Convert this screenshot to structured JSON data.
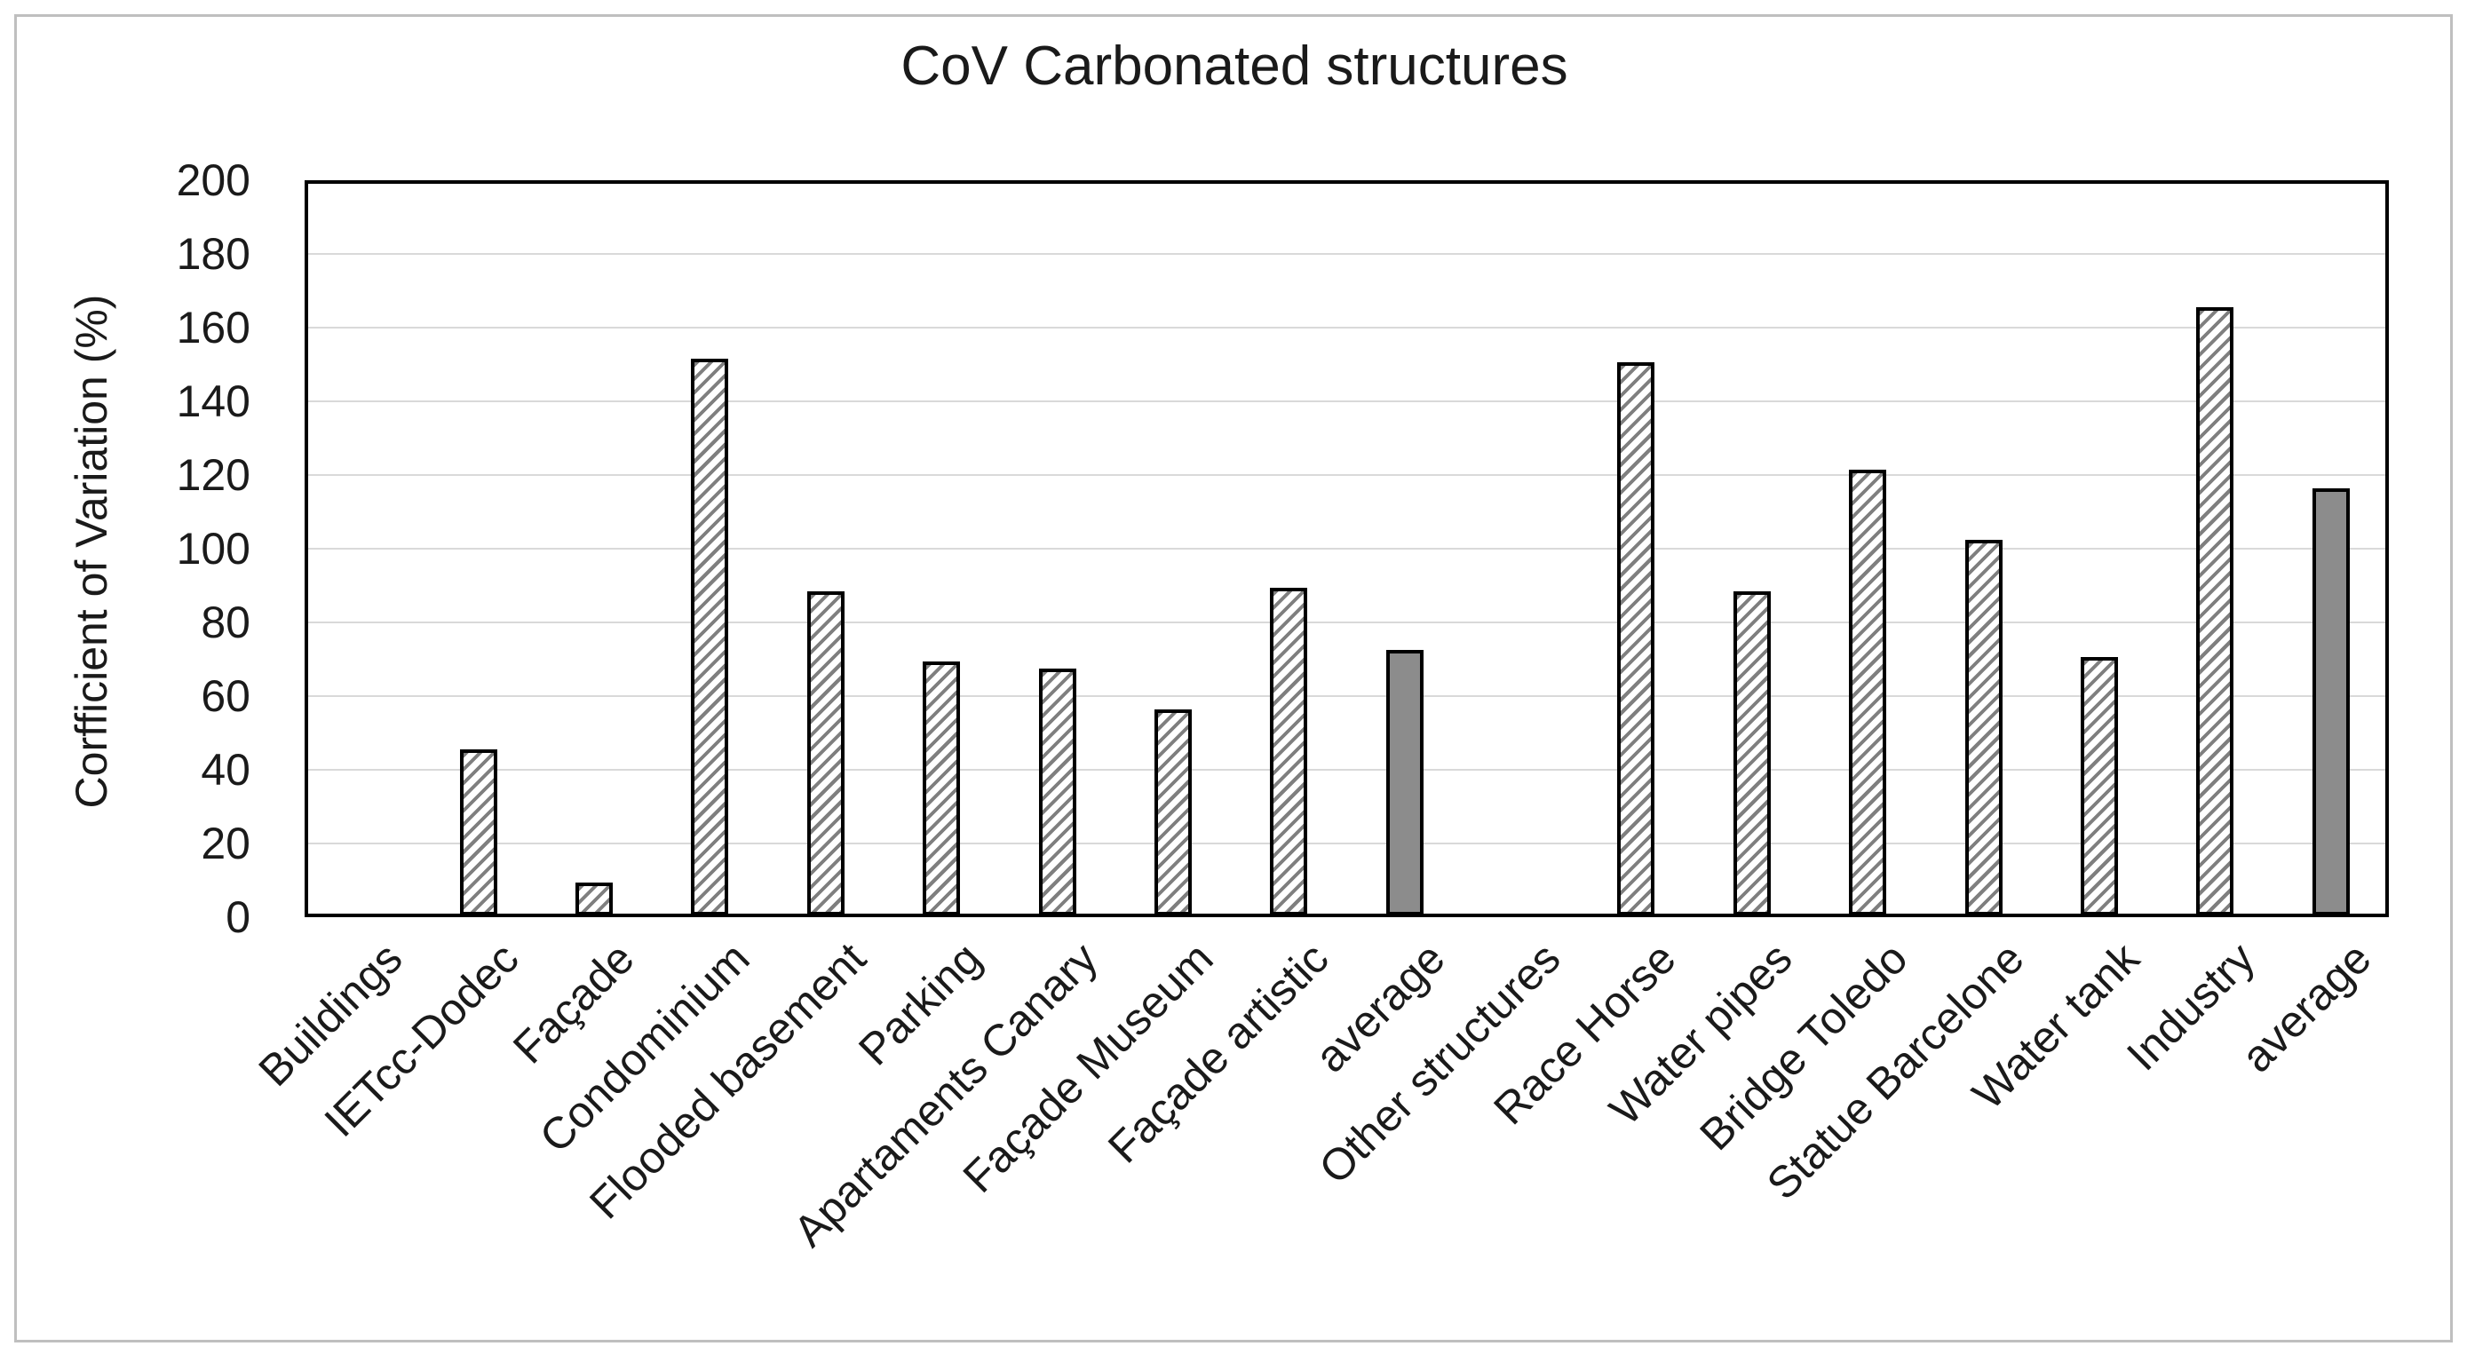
{
  "figure": {
    "background": "#ffffff",
    "border_color": "#bfbfbf"
  },
  "chart_data": {
    "type": "bar",
    "title": "CoV Carbonated structures",
    "xlabel": "",
    "ylabel": "Corfficient of Variation (%)",
    "ylim": [
      0,
      200
    ],
    "ytick_step": 20,
    "yticks": [
      0,
      20,
      40,
      60,
      80,
      100,
      120,
      140,
      160,
      180,
      200
    ],
    "grid": true,
    "legend_position": "none",
    "categories": [
      "Buildings",
      "IETcc-Dodec",
      "Façade",
      "Condominium",
      "Flooded basement",
      "Parking",
      "Apartaments Canary",
      "Façade Museum",
      "Façade artistic",
      "average",
      "Other structures",
      "Race Horse",
      "Water pipes",
      "Bridge Toledo",
      "Statue Barcelone",
      "Water tank",
      "Industry",
      "average"
    ],
    "values": [
      0,
      45,
      9,
      151,
      88,
      69,
      67,
      56,
      89,
      72,
      0,
      150,
      88,
      121,
      102,
      70,
      165,
      116
    ],
    "bar_styles": [
      "hatch",
      "hatch",
      "hatch",
      "hatch",
      "hatch",
      "hatch",
      "hatch",
      "hatch",
      "hatch",
      "solid",
      "hatch",
      "hatch",
      "hatch",
      "hatch",
      "hatch",
      "hatch",
      "hatch",
      "solid"
    ],
    "colors": {
      "hatch_stroke": "#7f7f7f",
      "hatch_fill": "#ffffff",
      "solid_fill": "#8c8c8c",
      "bar_outline": "#000000",
      "gridline": "#d9d9d9",
      "axis": "#000000",
      "text": "#1a1a1a"
    }
  }
}
